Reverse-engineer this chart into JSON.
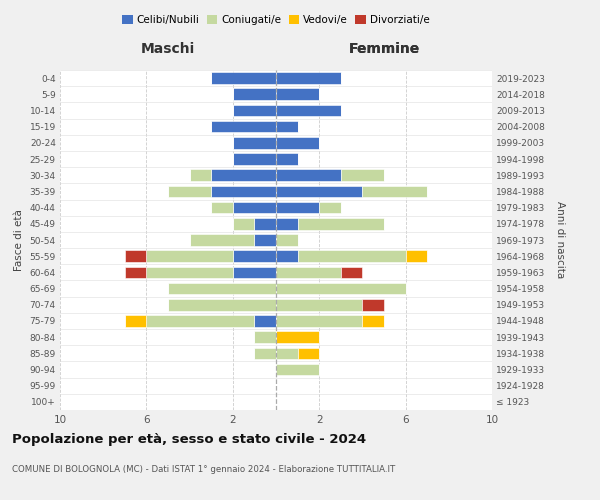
{
  "age_groups": [
    "100+",
    "95-99",
    "90-94",
    "85-89",
    "80-84",
    "75-79",
    "70-74",
    "65-69",
    "60-64",
    "55-59",
    "50-54",
    "45-49",
    "40-44",
    "35-39",
    "30-34",
    "25-29",
    "20-24",
    "15-19",
    "10-14",
    "5-9",
    "0-4"
  ],
  "birth_years": [
    "≤ 1923",
    "1924-1928",
    "1929-1933",
    "1934-1938",
    "1939-1943",
    "1944-1948",
    "1949-1953",
    "1954-1958",
    "1959-1963",
    "1964-1968",
    "1969-1973",
    "1974-1978",
    "1979-1983",
    "1984-1988",
    "1989-1993",
    "1994-1998",
    "1999-2003",
    "2004-2008",
    "2009-2013",
    "2014-2018",
    "2019-2023"
  ],
  "male_celibi": [
    0,
    0,
    0,
    0,
    0,
    1,
    0,
    0,
    2,
    2,
    1,
    1,
    2,
    3,
    3,
    2,
    2,
    3,
    2,
    2,
    3
  ],
  "male_coniugati": [
    0,
    0,
    0,
    1,
    1,
    5,
    5,
    5,
    4,
    4,
    3,
    1,
    1,
    2,
    1,
    0,
    0,
    0,
    0,
    0,
    0
  ],
  "male_vedovi": [
    0,
    0,
    0,
    0,
    0,
    1,
    0,
    0,
    0,
    0,
    0,
    0,
    0,
    0,
    0,
    0,
    0,
    0,
    0,
    0,
    0
  ],
  "male_divorziati": [
    0,
    0,
    0,
    0,
    0,
    0,
    0,
    0,
    1,
    1,
    0,
    0,
    0,
    0,
    0,
    0,
    0,
    0,
    0,
    0,
    0
  ],
  "female_celibi": [
    0,
    0,
    0,
    0,
    0,
    0,
    0,
    0,
    0,
    1,
    0,
    1,
    2,
    4,
    3,
    1,
    2,
    1,
    3,
    2,
    3
  ],
  "female_coniugati": [
    0,
    0,
    2,
    1,
    0,
    4,
    4,
    6,
    3,
    5,
    1,
    4,
    1,
    3,
    2,
    0,
    0,
    0,
    0,
    0,
    0
  ],
  "female_vedovi": [
    0,
    0,
    0,
    1,
    2,
    1,
    0,
    0,
    0,
    1,
    0,
    0,
    0,
    0,
    0,
    0,
    0,
    0,
    0,
    0,
    0
  ],
  "female_divorziati": [
    0,
    0,
    0,
    0,
    0,
    0,
    1,
    0,
    1,
    0,
    0,
    0,
    0,
    0,
    0,
    0,
    0,
    0,
    0,
    0,
    0
  ],
  "color_celibi": "#4472c4",
  "color_coniugati": "#c5d9a0",
  "color_vedovi": "#ffc000",
  "color_divorziati": "#c0392b",
  "xlim": 10,
  "title": "Popolazione per età, sesso e stato civile - 2024",
  "subtitle": "COMUNE DI BOLOGNOLA (MC) - Dati ISTAT 1° gennaio 2024 - Elaborazione TUTTITALIA.IT",
  "xlabel_left": "Maschi",
  "xlabel_right": "Femmine",
  "ylabel_left": "Fasce di età",
  "ylabel_right": "Anni di nascita",
  "bg_color": "#f0f0f0",
  "plot_bg": "#ffffff",
  "legend_labels": [
    "Celibi/Nubili",
    "Coniugati/e",
    "Vedovi/e",
    "Divorziati/e"
  ]
}
